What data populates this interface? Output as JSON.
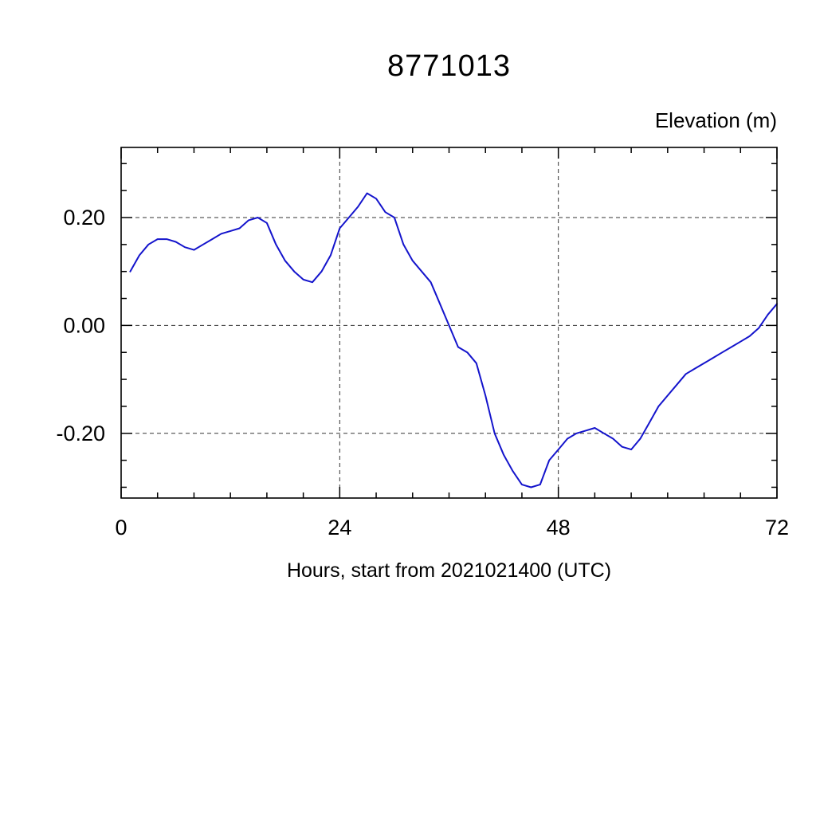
{
  "page": {
    "background": "#ffffff"
  },
  "chart_data": {
    "type": "line",
    "title": "8771013",
    "ylabel": "Elevation (m)",
    "xlabel": "Hours, start from 2021021400 (UTC)",
    "xlim": [
      0,
      72
    ],
    "ylim": [
      -0.32,
      0.33
    ],
    "x_ticks": [
      {
        "v": 0,
        "label": "0"
      },
      {
        "v": 24,
        "label": "24"
      },
      {
        "v": 48,
        "label": "48"
      },
      {
        "v": 72,
        "label": "72"
      }
    ],
    "x_minor_step": 4,
    "y_ticks": [
      {
        "v": 0.2,
        "label": "0.20"
      },
      {
        "v": 0.0,
        "label": "0.00"
      },
      {
        "v": -0.2,
        "label": "-0.20"
      }
    ],
    "y_minor_step": 0.05,
    "grid": {
      "style": "dashed",
      "color": "#333333",
      "x_values": [
        24,
        48
      ],
      "y_values": [
        0.2,
        0.0,
        -0.2
      ]
    },
    "line_color": "#1414cc",
    "axis_color": "#000000",
    "series": [
      {
        "name": "elevation",
        "x": [
          1,
          2,
          3,
          4,
          5,
          6,
          7,
          8,
          9,
          10,
          11,
          12,
          13,
          14,
          15,
          16,
          17,
          18,
          19,
          20,
          21,
          22,
          23,
          24,
          25,
          26,
          27,
          28,
          29,
          30,
          31,
          32,
          33,
          34,
          35,
          36,
          37,
          38,
          39,
          40,
          41,
          42,
          43,
          44,
          45,
          46,
          47,
          48,
          49,
          50,
          51,
          52,
          53,
          54,
          55,
          56,
          57,
          58,
          59,
          60,
          61,
          62,
          63,
          64,
          65,
          66,
          67,
          68,
          69,
          70,
          71,
          72
        ],
        "y": [
          0.1,
          0.13,
          0.15,
          0.16,
          0.16,
          0.155,
          0.145,
          0.14,
          0.15,
          0.16,
          0.17,
          0.175,
          0.18,
          0.195,
          0.2,
          0.19,
          0.15,
          0.12,
          0.1,
          0.085,
          0.08,
          0.1,
          0.13,
          0.18,
          0.2,
          0.22,
          0.245,
          0.235,
          0.21,
          0.2,
          0.15,
          0.12,
          0.1,
          0.08,
          0.04,
          0.0,
          -0.04,
          -0.05,
          -0.07,
          -0.13,
          -0.2,
          -0.24,
          -0.27,
          -0.295,
          -0.3,
          -0.295,
          -0.25,
          -0.23,
          -0.21,
          -0.2,
          -0.195,
          -0.19,
          -0.2,
          -0.21,
          -0.225,
          -0.23,
          -0.21,
          -0.18,
          -0.15,
          -0.13,
          -0.11,
          -0.09,
          -0.08,
          -0.07,
          -0.06,
          -0.05,
          -0.04,
          -0.03,
          -0.02,
          -0.005,
          0.02,
          0.04
        ]
      }
    ]
  }
}
